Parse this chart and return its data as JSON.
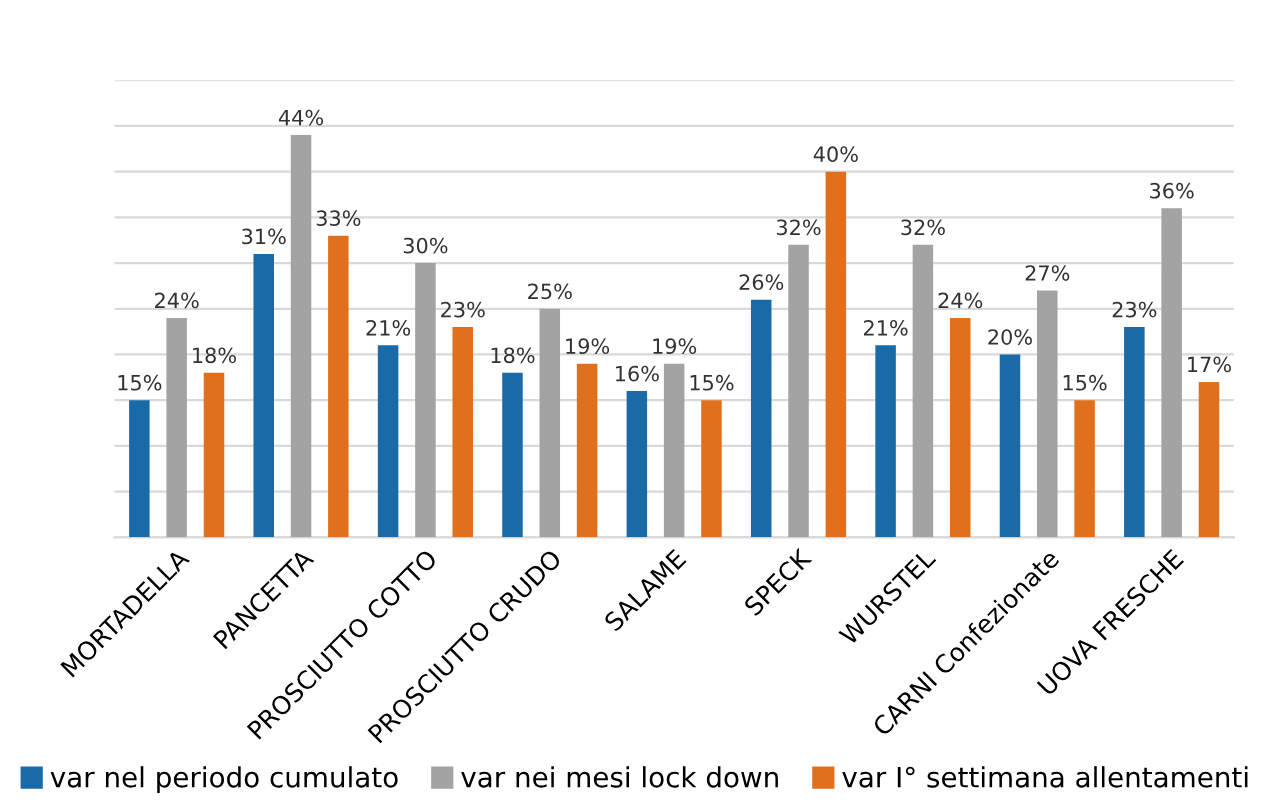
{
  "chart_data": {
    "type": "bar",
    "categories": [
      "MORTADELLA",
      "PANCETTA",
      "PROSCIUTTO COTTO",
      "PROSCIUTTO CRUDO",
      "SALAME",
      "SPECK",
      "WURSTEL",
      "CARNI Confezionate",
      "UOVA FRESCHE"
    ],
    "series": [
      {
        "name": "var nel periodo cumulato",
        "color": "#1a6aa8",
        "values": [
          15,
          31,
          21,
          18,
          16,
          26,
          21,
          20,
          23
        ],
        "value_labels": [
          "15%",
          "31%",
          "21%",
          "18%",
          "16%",
          "26%",
          "21%",
          "20%",
          "23%"
        ]
      },
      {
        "name": "var nei mesi lock down",
        "color": "#a3a3a3",
        "values": [
          24,
          44,
          30,
          25,
          19,
          32,
          32,
          27,
          36
        ],
        "value_labels": [
          "24%",
          "44%",
          "30%",
          "25%",
          "19%",
          "32%",
          "32%",
          "27%",
          "36%"
        ]
      },
      {
        "name": "var I° settimana allentamenti",
        "color": "#e0701e",
        "values": [
          18,
          33,
          23,
          19,
          15,
          40,
          24,
          15,
          17
        ],
        "value_labels": [
          "18%",
          "33%",
          "23%",
          "19%",
          "15%",
          "40%",
          "24%",
          "15%",
          "17%"
        ]
      }
    ],
    "ylim": [
      0,
      50
    ],
    "yticks": [
      {
        "value": 0,
        "label": null
      },
      {
        "value": 5,
        "label": null
      },
      {
        "value": 10,
        "label": null
      },
      {
        "value": 15,
        "label": null
      },
      {
        "value": 20,
        "label": null
      },
      {
        "value": 25,
        "label": null
      },
      {
        "value": 30,
        "label": null
      },
      {
        "value": 35,
        "label": null
      },
      {
        "value": 40,
        "label": null
      },
      {
        "value": 45,
        "label": null
      },
      {
        "value": 50,
        "label": null
      }
    ],
    "grid": "y",
    "legend": "bottom",
    "tick_labels": "x"
  }
}
